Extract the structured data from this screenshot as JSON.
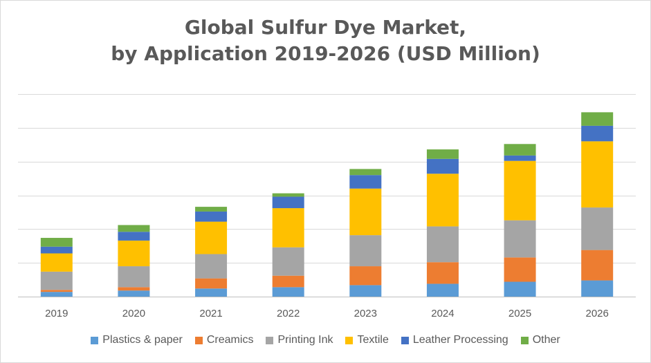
{
  "chart_data": {
    "type": "bar",
    "stacked": true,
    "title_lines": [
      "Global Sulfur Dye Market,",
      "by Application 2019-2026 (USD Million)"
    ],
    "categories": [
      "2019",
      "2020",
      "2021",
      "2022",
      "2023",
      "2024",
      "2025",
      "2026"
    ],
    "ylim": [
      0,
      300
    ],
    "y_ticks": [
      0,
      50,
      100,
      150,
      200,
      250,
      300
    ],
    "grid": true,
    "y_tick_labels_visible": false,
    "legend_position": "bottom",
    "series": [
      {
        "name": "Plastics & paper",
        "color": "#5b9bd5",
        "values": [
          7,
          9,
          12,
          14,
          17,
          19,
          22,
          24
        ]
      },
      {
        "name": "Creamics",
        "color": "#ed7d31",
        "values": [
          3,
          5,
          15,
          17,
          28,
          32,
          36,
          45
        ]
      },
      {
        "name": "Printing Ink",
        "color": "#a5a5a5",
        "values": [
          27,
          31,
          36,
          42,
          46,
          53,
          55,
          63
        ]
      },
      {
        "name": "Textile",
        "color": "#ffc000",
        "values": [
          27,
          38,
          48,
          58,
          69,
          78,
          88,
          98
        ]
      },
      {
        "name": "Leather Processing",
        "color": "#4472c4",
        "values": [
          10,
          13,
          15,
          17,
          20,
          22,
          8,
          23
        ]
      },
      {
        "name": "Other",
        "color": "#70ad47",
        "values": [
          13,
          10,
          7,
          5,
          9,
          14,
          17,
          20
        ]
      }
    ]
  }
}
